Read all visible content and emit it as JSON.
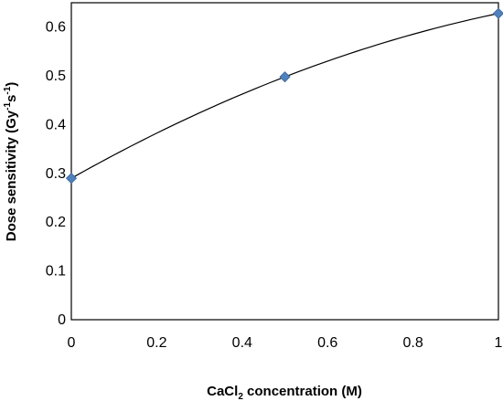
{
  "chart_data": {
    "type": "scatter",
    "title": "",
    "xlabel": {
      "prefix": "CaCl",
      "sub": "2",
      "suffix": " concentration (M)"
    },
    "ylabel": {
      "main": "Dose sensitivity (Gy",
      "sup1": "-1",
      "mid": "s",
      "sup2": "-1",
      "close": ")"
    },
    "xlim": [
      0,
      1
    ],
    "ylim": [
      0,
      0.65
    ],
    "x_ticks": [
      "0",
      "0.2",
      "0.4",
      "0.6",
      "0.8",
      "1"
    ],
    "y_ticks": [
      "0",
      "0.1",
      "0.2",
      "0.3",
      "0.4",
      "0.5",
      "0.6"
    ],
    "grid": false,
    "marker": "diamond",
    "marker_color": "#4F81BD",
    "line_color": "#000000",
    "trendline": "polynomial",
    "series": [
      {
        "x": [
          0,
          0.5,
          1
        ],
        "y": [
          0.29,
          0.498,
          0.628
        ]
      }
    ]
  }
}
